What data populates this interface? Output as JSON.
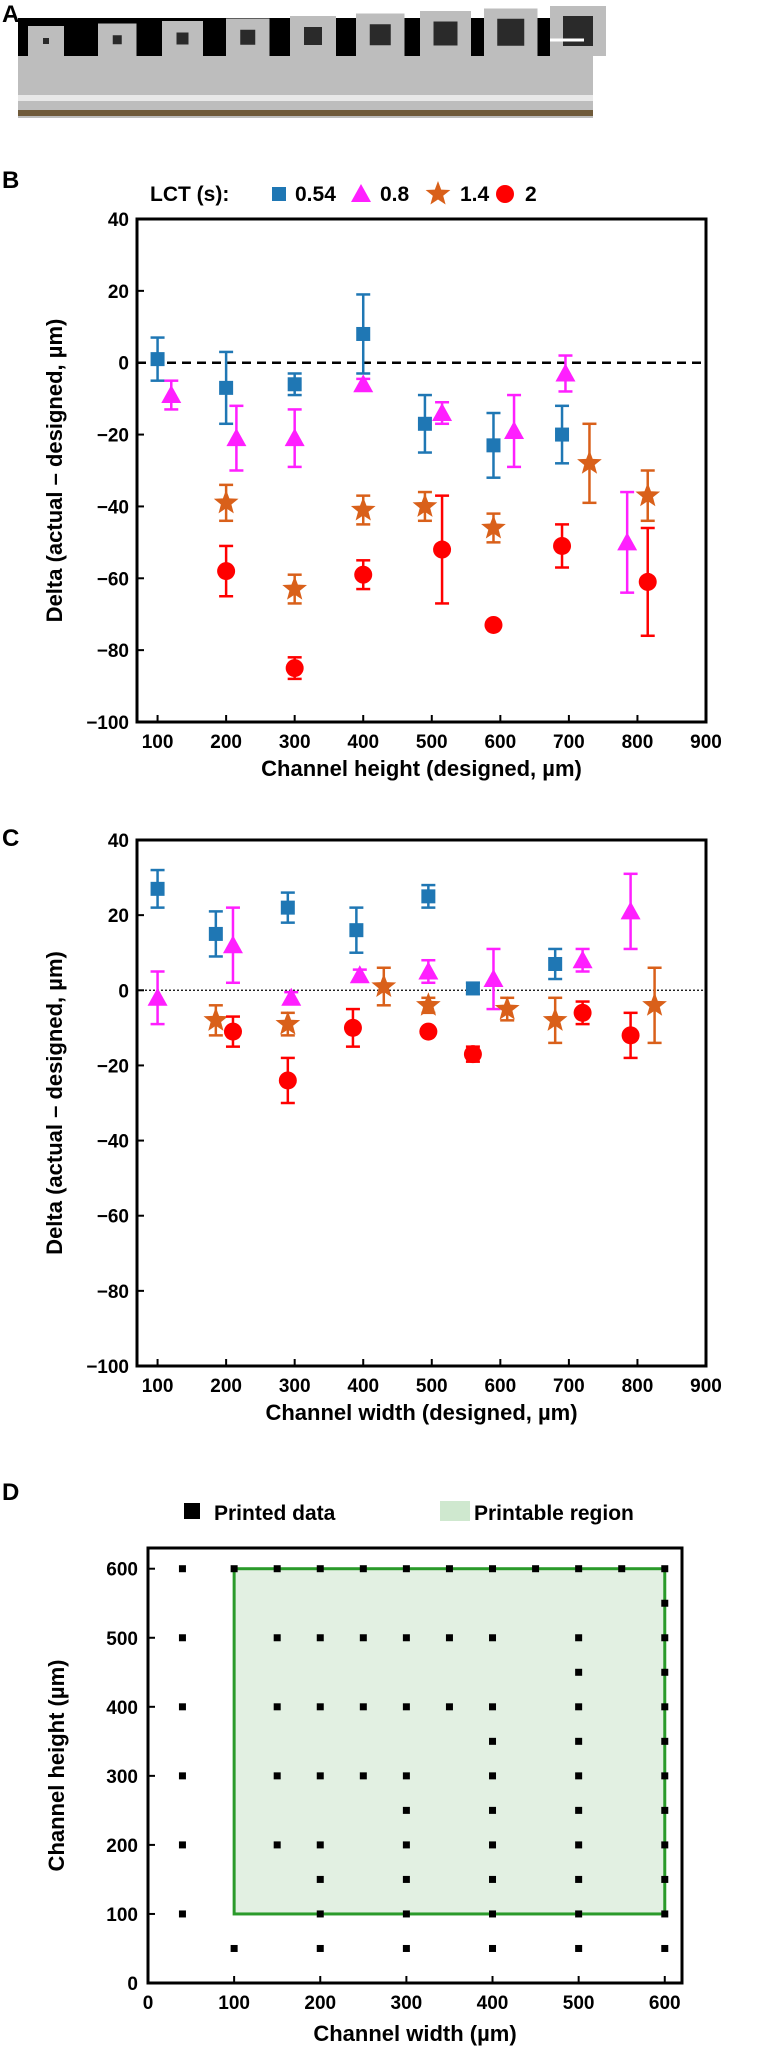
{
  "panels": {
    "a": "A",
    "b": "B",
    "c": "C",
    "d": "D"
  },
  "photo": {
    "colors": {
      "background": "#000000",
      "device": "#bdbdbd",
      "channel": "#2a2a2a"
    }
  },
  "legend_bc": {
    "title": "LCT (s):",
    "items": [
      {
        "label": "0.54",
        "marker": "square",
        "color": "#1f77b4"
      },
      {
        "label": "0.8",
        "marker": "triangle",
        "color": "#ff1fff"
      },
      {
        "label": "1.4",
        "marker": "star",
        "color": "#d9601a"
      },
      {
        "label": "2",
        "marker": "circle",
        "color": "#ff0000"
      }
    ]
  },
  "legend_d": {
    "printed": "Printed data",
    "region": "Printable region"
  },
  "chart_data": [
    {
      "id": "B",
      "type": "scatter",
      "xlabel": "Channel height (designed, µm)",
      "ylabel": "Delta (actual – designed, µm)",
      "xlim": [
        70,
        900
      ],
      "ylim": [
        -100,
        40
      ],
      "xticks": [
        100,
        200,
        300,
        400,
        500,
        600,
        700,
        800,
        900
      ],
      "yticks": [
        40,
        20,
        0,
        -20,
        -40,
        -60,
        -80,
        -100
      ],
      "reference_line": {
        "y": 0,
        "style": "dashed"
      },
      "series": [
        {
          "name": "0.54",
          "points": [
            {
              "x": 100,
              "y": 1,
              "err": 6
            },
            {
              "x": 200,
              "y": -7,
              "err": 10
            },
            {
              "x": 300,
              "y": -6,
              "err": 3
            },
            {
              "x": 400,
              "y": 8,
              "err": 11
            },
            {
              "x": 490,
              "y": -17,
              "err": 8
            },
            {
              "x": 590,
              "y": -23,
              "err": 9
            },
            {
              "x": 690,
              "y": -20,
              "err": 8
            }
          ]
        },
        {
          "name": "0.8",
          "points": [
            {
              "x": 120,
              "y": -9,
              "err": 4
            },
            {
              "x": 215,
              "y": -21,
              "err": 9
            },
            {
              "x": 300,
              "y": -21,
              "err": 8
            },
            {
              "x": 400,
              "y": -6,
              "err": 1.5
            },
            {
              "x": 515,
              "y": -14,
              "err": 3
            },
            {
              "x": 620,
              "y": -19,
              "err": 10
            },
            {
              "x": 695,
              "y": -3,
              "err": 5
            },
            {
              "x": 785,
              "y": -50,
              "err": 14
            }
          ]
        },
        {
          "name": "1.4",
          "points": [
            {
              "x": 200,
              "y": -39,
              "err": 5
            },
            {
              "x": 300,
              "y": -63,
              "err": 4
            },
            {
              "x": 400,
              "y": -41,
              "err": 4
            },
            {
              "x": 490,
              "y": -40,
              "err": 4
            },
            {
              "x": 590,
              "y": -46,
              "err": 4
            },
            {
              "x": 730,
              "y": -28,
              "err": 11
            },
            {
              "x": 815,
              "y": -37,
              "err": 7
            }
          ]
        },
        {
          "name": "2",
          "points": [
            {
              "x": 200,
              "y": -58,
              "err": 7
            },
            {
              "x": 300,
              "y": -85,
              "err": 3
            },
            {
              "x": 400,
              "y": -59,
              "err": 4
            },
            {
              "x": 515,
              "y": -52,
              "err": 15
            },
            {
              "x": 590,
              "y": -73,
              "err": 1
            },
            {
              "x": 690,
              "y": -51,
              "err": 6
            },
            {
              "x": 815,
              "y": -61,
              "err": 15
            }
          ]
        }
      ]
    },
    {
      "id": "C",
      "type": "scatter",
      "xlabel": "Channel width (designed, µm)",
      "ylabel": "Delta (actual – designed, µm)",
      "xlim": [
        70,
        900
      ],
      "ylim": [
        -100,
        40
      ],
      "xticks": [
        100,
        200,
        300,
        400,
        500,
        600,
        700,
        800,
        900
      ],
      "yticks": [
        40,
        20,
        0,
        -20,
        -40,
        -60,
        -80,
        -100
      ],
      "reference_line": {
        "y": 0,
        "style": "dotted"
      },
      "series": [
        {
          "name": "0.54",
          "points": [
            {
              "x": 100,
              "y": 27,
              "err": 5
            },
            {
              "x": 185,
              "y": 15,
              "err": 6
            },
            {
              "x": 290,
              "y": 22,
              "err": 4
            },
            {
              "x": 390,
              "y": 16,
              "err": 6
            },
            {
              "x": 495,
              "y": 25,
              "err": 3
            },
            {
              "x": 560,
              "y": 0.5,
              "err": 1.5
            },
            {
              "x": 680,
              "y": 7,
              "err": 4
            }
          ]
        },
        {
          "name": "0.8",
          "points": [
            {
              "x": 100,
              "y": -2,
              "err": 7
            },
            {
              "x": 210,
              "y": 12,
              "err": 10
            },
            {
              "x": 295,
              "y": -2,
              "err": 1.5
            },
            {
              "x": 395,
              "y": 4,
              "err": 1.5
            },
            {
              "x": 495,
              "y": 5,
              "err": 3
            },
            {
              "x": 590,
              "y": 3,
              "err": 8
            },
            {
              "x": 720,
              "y": 8,
              "err": 3
            },
            {
              "x": 790,
              "y": 21,
              "err": 10
            }
          ]
        },
        {
          "name": "1.4",
          "points": [
            {
              "x": 185,
              "y": -8,
              "err": 4
            },
            {
              "x": 290,
              "y": -9,
              "err": 3
            },
            {
              "x": 430,
              "y": 1,
              "err": 5
            },
            {
              "x": 495,
              "y": -4,
              "err": 2
            },
            {
              "x": 610,
              "y": -5,
              "err": 3
            },
            {
              "x": 680,
              "y": -8,
              "err": 6
            },
            {
              "x": 825,
              "y": -4,
              "err": 10
            }
          ]
        },
        {
          "name": "2",
          "points": [
            {
              "x": 210,
              "y": -11,
              "err": 4
            },
            {
              "x": 290,
              "y": -24,
              "err": 6
            },
            {
              "x": 385,
              "y": -10,
              "err": 5
            },
            {
              "x": 495,
              "y": -11,
              "err": 1
            },
            {
              "x": 560,
              "y": -17,
              "err": 2
            },
            {
              "x": 720,
              "y": -6,
              "err": 3
            },
            {
              "x": 790,
              "y": -12,
              "err": 6
            }
          ]
        }
      ]
    },
    {
      "id": "D",
      "type": "scatter",
      "xlabel": "Channel width (µm)",
      "ylabel": "Channel height (µm)",
      "xlim": [
        0,
        620
      ],
      "ylim": [
        0,
        630
      ],
      "xticks": [
        0,
        100,
        200,
        300,
        400,
        500,
        600
      ],
      "yticks": [
        0,
        100,
        200,
        300,
        400,
        500,
        600
      ],
      "printable_region": {
        "x": [
          100,
          600
        ],
        "y": [
          100,
          600
        ],
        "color": "#e2f0e2",
        "edge": "#2a9a2a"
      },
      "printed_points": [
        [
          40,
          100
        ],
        [
          40,
          200
        ],
        [
          40,
          300
        ],
        [
          40,
          400
        ],
        [
          40,
          500
        ],
        [
          40,
          600
        ],
        [
          100,
          50
        ],
        [
          100,
          600
        ],
        [
          150,
          200
        ],
        [
          150,
          300
        ],
        [
          150,
          400
        ],
        [
          150,
          500
        ],
        [
          150,
          600
        ],
        [
          200,
          50
        ],
        [
          200,
          100
        ],
        [
          200,
          150
        ],
        [
          200,
          200
        ],
        [
          200,
          300
        ],
        [
          200,
          400
        ],
        [
          200,
          500
        ],
        [
          200,
          600
        ],
        [
          250,
          300
        ],
        [
          250,
          400
        ],
        [
          250,
          500
        ],
        [
          250,
          600
        ],
        [
          300,
          50
        ],
        [
          300,
          100
        ],
        [
          300,
          150
        ],
        [
          300,
          200
        ],
        [
          300,
          250
        ],
        [
          300,
          300
        ],
        [
          300,
          400
        ],
        [
          300,
          500
        ],
        [
          300,
          600
        ],
        [
          350,
          400
        ],
        [
          350,
          500
        ],
        [
          350,
          600
        ],
        [
          400,
          50
        ],
        [
          400,
          100
        ],
        [
          400,
          150
        ],
        [
          400,
          200
        ],
        [
          400,
          250
        ],
        [
          400,
          300
        ],
        [
          400,
          350
        ],
        [
          400,
          400
        ],
        [
          400,
          500
        ],
        [
          400,
          600
        ],
        [
          450,
          600
        ],
        [
          500,
          50
        ],
        [
          500,
          100
        ],
        [
          500,
          150
        ],
        [
          500,
          200
        ],
        [
          500,
          250
        ],
        [
          500,
          300
        ],
        [
          500,
          350
        ],
        [
          500,
          400
        ],
        [
          500,
          450
        ],
        [
          500,
          500
        ],
        [
          500,
          600
        ],
        [
          550,
          600
        ],
        [
          600,
          50
        ],
        [
          600,
          100
        ],
        [
          600,
          150
        ],
        [
          600,
          200
        ],
        [
          600,
          250
        ],
        [
          600,
          300
        ],
        [
          600,
          350
        ],
        [
          600,
          400
        ],
        [
          600,
          450
        ],
        [
          600,
          500
        ],
        [
          600,
          550
        ],
        [
          600,
          600
        ]
      ]
    }
  ]
}
